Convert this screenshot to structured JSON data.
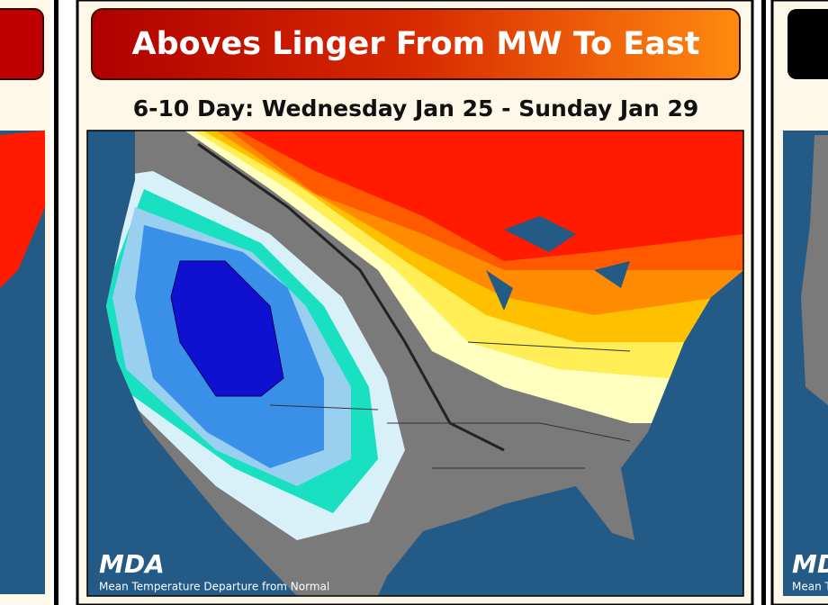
{
  "center_panel": {
    "title": "Aboves Linger From MW To East",
    "subtitle": "6-10 Day: Wednesday Jan 25 - Sunday Jan 29",
    "logo": "MDA",
    "caption": "Mean Temperature Departure from Normal"
  },
  "right_panel": {
    "logo": "MDA",
    "caption": "Mean Temperature Departure from Normal"
  }
}
